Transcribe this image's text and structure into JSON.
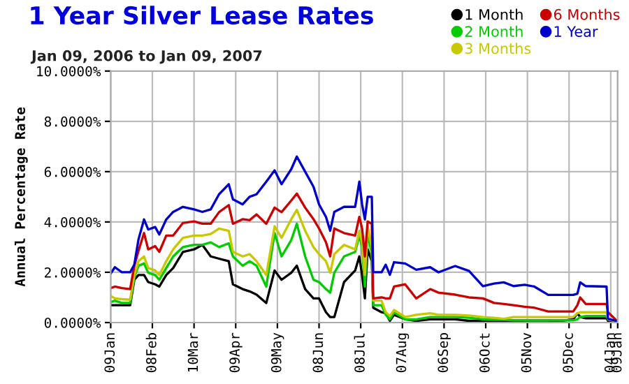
{
  "chart_data": {
    "type": "line",
    "title": "1 Year Silver Lease Rates",
    "subtitle": "Jan 09, 2006 to Jan 09, 2007",
    "ylabel": "Annual Percentage Rate",
    "x": [
      "2006-01-09",
      "2006-01-12",
      "2006-01-17",
      "2006-01-23",
      "2006-01-26",
      "2006-01-29",
      "2006-02-02",
      "2006-02-05",
      "2006-02-10",
      "2006-02-13",
      "2006-02-18",
      "2006-02-23",
      "2006-03-02",
      "2006-03-10",
      "2006-03-16",
      "2006-03-22",
      "2006-03-28",
      "2006-04-04",
      "2006-04-07",
      "2006-04-14",
      "2006-04-19",
      "2006-04-24",
      "2006-05-01",
      "2006-05-07",
      "2006-05-12",
      "2006-05-19",
      "2006-05-23",
      "2006-05-29",
      "2006-06-04",
      "2006-06-08",
      "2006-06-13",
      "2006-06-16",
      "2006-06-19",
      "2006-06-26",
      "2006-07-04",
      "2006-07-07",
      "2006-07-09",
      "2006-07-11",
      "2006-07-13",
      "2006-07-16",
      "2006-07-17",
      "2006-07-23",
      "2006-07-26",
      "2006-07-29",
      "2006-08-01",
      "2006-08-09",
      "2006-08-17",
      "2006-08-27",
      "2006-09-02",
      "2006-09-14",
      "2006-09-24",
      "2006-10-04",
      "2006-10-12",
      "2006-10-19",
      "2006-10-26",
      "2006-11-03",
      "2006-11-10",
      "2006-11-20",
      "2006-12-08",
      "2006-12-11",
      "2006-12-13",
      "2006-12-17",
      "2007-01-01",
      "2007-01-02",
      "2007-01-09"
    ],
    "series": [
      {
        "name": "1 Month",
        "color": "#000000",
        "values": [
          0.69,
          0.69,
          0.69,
          0.69,
          1.7,
          1.89,
          1.89,
          1.61,
          1.52,
          1.43,
          1.89,
          2.17,
          2.81,
          2.91,
          3.09,
          2.63,
          2.54,
          2.44,
          1.52,
          1.33,
          1.24,
          1.11,
          0.78,
          2.07,
          1.7,
          1.98,
          2.26,
          1.33,
          0.96,
          0.96,
          0.41,
          0.22,
          0.22,
          1.61,
          2.07,
          2.63,
          1.89,
          0.96,
          2.91,
          2.44,
          0.59,
          0.41,
          0.37,
          0.07,
          0.31,
          0.13,
          0.07,
          0.13,
          0.13,
          0.13,
          0.07,
          0.07,
          0.04,
          0.04,
          0.04,
          0.0,
          0.0,
          0.0,
          0.13,
          0.37,
          0.22,
          0.17,
          0.17,
          0.07,
          0.0
        ]
      },
      {
        "name": "2 Month",
        "color": "#00cc00",
        "values": [
          0.81,
          0.87,
          0.78,
          0.78,
          1.8,
          2.26,
          2.35,
          1.98,
          1.89,
          1.7,
          2.17,
          2.63,
          3.0,
          3.09,
          3.09,
          3.19,
          3.0,
          3.15,
          2.63,
          2.26,
          2.44,
          2.26,
          1.43,
          3.56,
          2.63,
          3.28,
          3.93,
          2.63,
          1.7,
          1.61,
          1.33,
          1.19,
          1.98,
          2.63,
          2.81,
          3.46,
          3.0,
          1.43,
          3.56,
          2.72,
          0.69,
          0.69,
          0.31,
          0.13,
          0.41,
          0.13,
          0.13,
          0.22,
          0.22,
          0.22,
          0.19,
          0.13,
          0.11,
          0.11,
          0.09,
          0.09,
          0.09,
          0.09,
          0.09,
          0.13,
          0.22,
          0.26,
          0.26,
          0.13,
          0.04
        ]
      },
      {
        "name": "3 Months",
        "color": "#c8c800",
        "values": [
          1.06,
          0.96,
          0.93,
          0.91,
          1.89,
          2.44,
          2.63,
          2.17,
          2.07,
          1.89,
          2.44,
          2.91,
          3.37,
          3.46,
          3.46,
          3.52,
          3.74,
          3.65,
          2.81,
          2.63,
          2.72,
          2.44,
          1.89,
          3.83,
          3.37,
          4.11,
          4.48,
          3.65,
          3.0,
          2.72,
          2.44,
          1.98,
          2.72,
          3.09,
          2.91,
          3.65,
          3.19,
          1.89,
          3.83,
          3.0,
          0.87,
          0.87,
          0.41,
          0.26,
          0.5,
          0.22,
          0.31,
          0.37,
          0.31,
          0.31,
          0.28,
          0.22,
          0.19,
          0.15,
          0.22,
          0.22,
          0.22,
          0.22,
          0.22,
          0.37,
          0.41,
          0.41,
          0.41,
          0.13,
          0.04
        ]
      },
      {
        "name": "6 Months",
        "color": "#cc0000",
        "values": [
          1.37,
          1.43,
          1.37,
          1.33,
          2.26,
          2.85,
          3.56,
          2.91,
          3.04,
          2.81,
          3.46,
          3.46,
          3.96,
          4.02,
          3.93,
          3.93,
          4.39,
          4.67,
          3.93,
          4.11,
          4.07,
          4.3,
          3.93,
          4.57,
          4.39,
          4.85,
          5.13,
          4.57,
          4.11,
          3.74,
          3.19,
          2.63,
          3.74,
          3.56,
          3.46,
          4.2,
          3.74,
          2.63,
          4.02,
          3.93,
          0.96,
          1.0,
          0.96,
          0.96,
          1.43,
          1.52,
          0.96,
          1.33,
          1.19,
          1.11,
          1.0,
          0.96,
          0.78,
          0.74,
          0.69,
          0.63,
          0.59,
          0.44,
          0.44,
          0.69,
          1.0,
          0.74,
          0.74,
          0.41,
          0.04
        ]
      },
      {
        "name": "1 Year",
        "color": "#0000cc",
        "values": [
          1.95,
          2.2,
          2.0,
          2.0,
          2.3,
          3.3,
          4.1,
          3.7,
          3.8,
          3.5,
          4.1,
          4.4,
          4.6,
          4.5,
          4.4,
          4.5,
          5.1,
          5.5,
          4.9,
          4.7,
          5.0,
          5.1,
          5.6,
          6.05,
          5.5,
          6.1,
          6.6,
          6.0,
          5.4,
          4.7,
          4.2,
          3.65,
          4.4,
          4.6,
          4.6,
          5.6,
          4.7,
          4.1,
          5.0,
          5.0,
          2.0,
          2.0,
          2.3,
          1.9,
          2.4,
          2.35,
          2.1,
          2.2,
          2.0,
          2.25,
          2.05,
          1.45,
          1.55,
          1.6,
          1.45,
          1.5,
          1.43,
          1.1,
          1.1,
          1.15,
          1.6,
          1.45,
          1.43,
          0.15,
          0.05
        ]
      }
    ],
    "xlim": [
      "2006-01-09",
      "2007-01-09"
    ],
    "xticks": [
      {
        "value": "2006-01-09",
        "label": "09Jan"
      },
      {
        "value": "2006-02-08",
        "label": "08Feb"
      },
      {
        "value": "2006-03-10",
        "label": "10Mar"
      },
      {
        "value": "2006-04-09",
        "label": "09Apr"
      },
      {
        "value": "2006-05-09",
        "label": "09May"
      },
      {
        "value": "2006-06-08",
        "label": "08Jun"
      },
      {
        "value": "2006-07-08",
        "label": "08Jul"
      },
      {
        "value": "2006-08-07",
        "label": "07Aug"
      },
      {
        "value": "2006-09-06",
        "label": "06Sep"
      },
      {
        "value": "2006-10-06",
        "label": "06Oct"
      },
      {
        "value": "2006-11-05",
        "label": "05Nov"
      },
      {
        "value": "2006-12-05",
        "label": "05Dec"
      },
      {
        "value": "2007-01-04",
        "label": "04Jan"
      },
      {
        "value": "2007-01-09",
        "label": "09Jan"
      }
    ],
    "ylim": [
      0,
      10
    ],
    "yticks": [
      {
        "value": 0,
        "label": "0.0000%"
      },
      {
        "value": 2,
        "label": "2.0000%"
      },
      {
        "value": 4,
        "label": "4.0000%"
      },
      {
        "value": 6,
        "label": "6.0000%"
      },
      {
        "value": 8,
        "label": "8.0000%"
      },
      {
        "value": 10,
        "label": "10.0000%"
      }
    ],
    "grid": true,
    "legend": "top right",
    "line_style": "solid"
  }
}
